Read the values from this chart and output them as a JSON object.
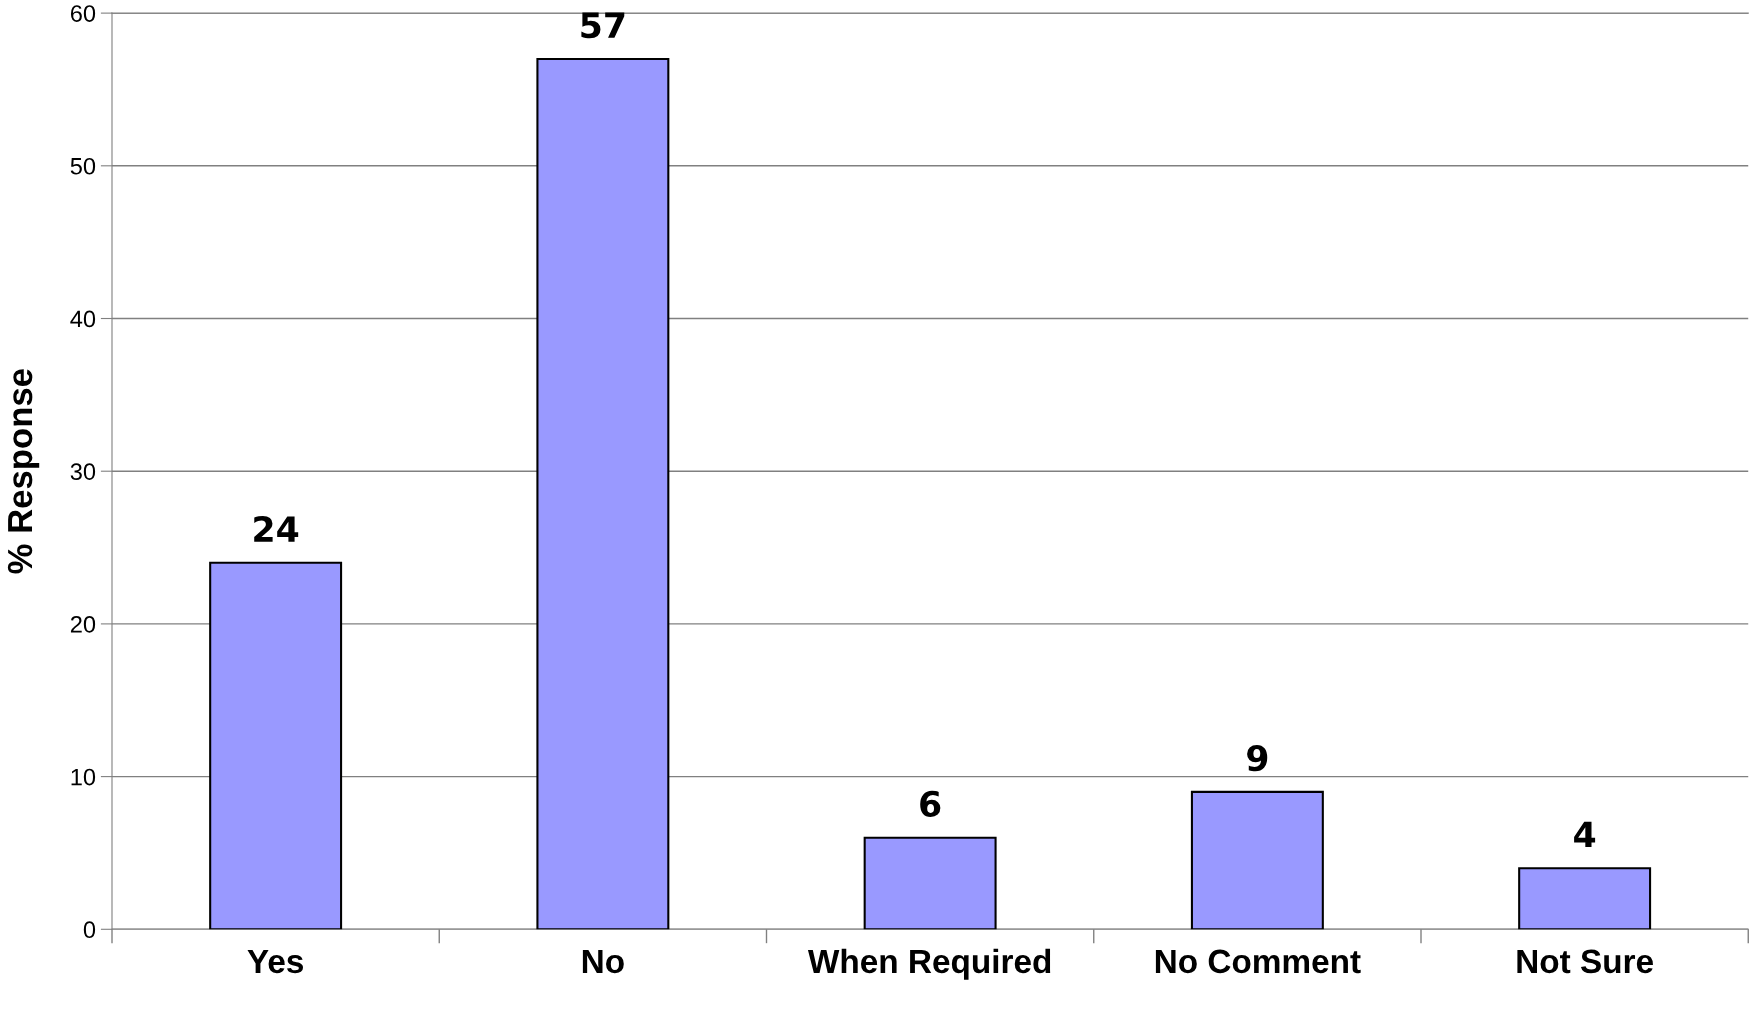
{
  "chart_data": {
    "type": "bar",
    "ylabel": "% Response",
    "categories": [
      "Yes",
      "No",
      "When Required",
      "No Comment",
      "Not Sure"
    ],
    "values": [
      24,
      57,
      6,
      9,
      4
    ],
    "color": "#9999ff",
    "ylim": [
      0,
      60
    ],
    "yticks": [
      0,
      10,
      20,
      30,
      40,
      50,
      60
    ],
    "grid": "y",
    "data_labels": true
  }
}
